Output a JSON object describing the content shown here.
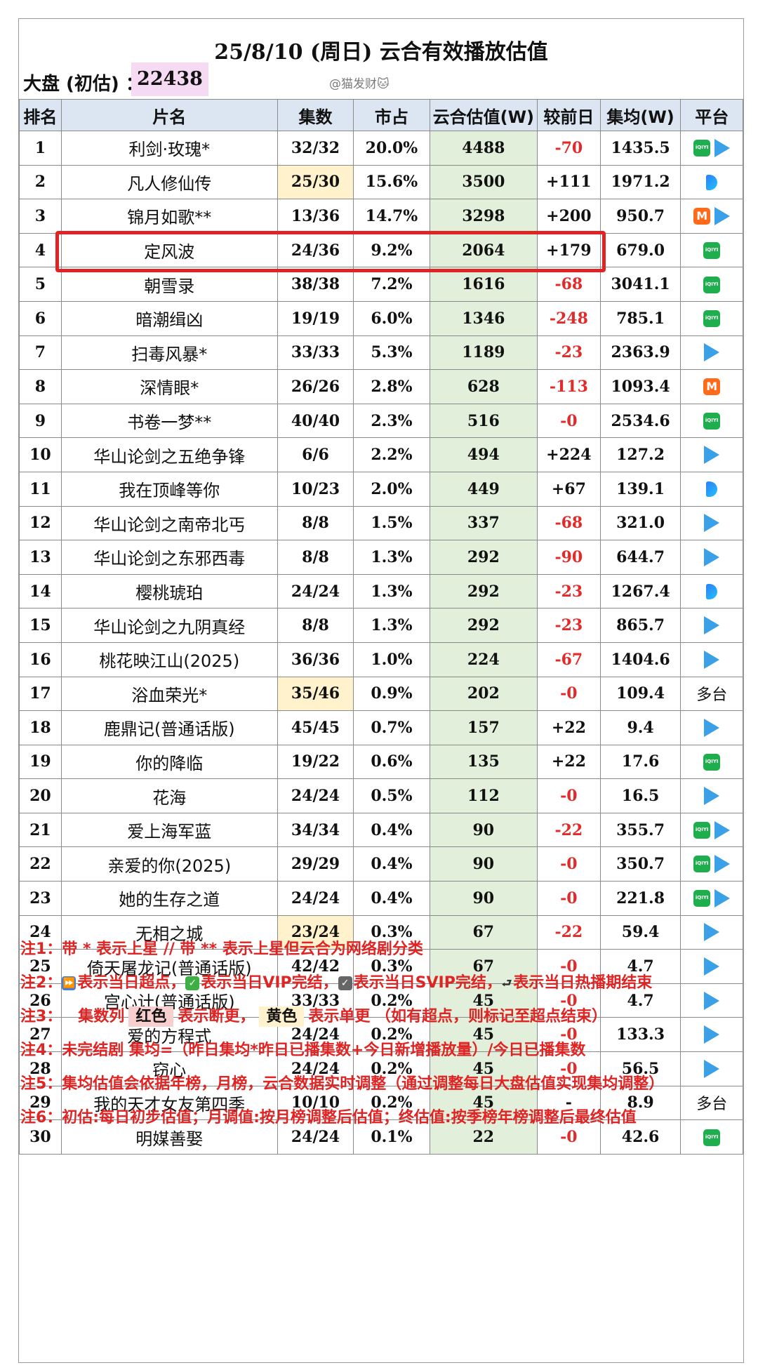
{
  "title": "25/8/10 (周日) 云合有效播放估值",
  "pan": {
    "label": "大盘 (初估) ：",
    "value": "22438"
  },
  "watermark": "@猫发财🐱",
  "headers": [
    "排名",
    "片名",
    "集数",
    "市占",
    "云合估值(W)",
    "较前日",
    "集均(W)",
    "平台"
  ],
  "rows": [
    {
      "rank": "1",
      "name": "利剑·玫瑰*",
      "episodes": "32/32",
      "share": "20.0%",
      "estimate": "4488",
      "change": "-70",
      "avg": "1435.5",
      "platforms": [
        "iqiyi",
        "tencent"
      ],
      "platform_text": "",
      "ep_color": ""
    },
    {
      "rank": "2",
      "name": "凡人修仙传",
      "episodes": "25/30",
      "share": "15.6%",
      "estimate": "3500",
      "change": "+111",
      "avg": "1971.2",
      "platforms": [
        "youku"
      ],
      "platform_text": "",
      "ep_color": "yellow"
    },
    {
      "rank": "3",
      "name": "锦月如歌**",
      "episodes": "13/36",
      "share": "14.7%",
      "estimate": "3298",
      "change": "+200",
      "avg": "950.7",
      "platforms": [
        "mango",
        "tencent"
      ],
      "platform_text": "",
      "ep_color": ""
    },
    {
      "rank": "4",
      "name": "定风波",
      "episodes": "24/36",
      "share": "9.2%",
      "estimate": "2064",
      "change": "+179",
      "avg": "679.0",
      "platforms": [
        "iqiyi"
      ],
      "platform_text": "",
      "ep_color": ""
    },
    {
      "rank": "5",
      "name": "朝雪录",
      "episodes": "38/38",
      "share": "7.2%",
      "estimate": "1616",
      "change": "-68",
      "avg": "3041.1",
      "platforms": [
        "iqiyi"
      ],
      "platform_text": "",
      "ep_color": ""
    },
    {
      "rank": "6",
      "name": "暗潮缉凶",
      "episodes": "19/19",
      "share": "6.0%",
      "estimate": "1346",
      "change": "-248",
      "avg": "785.1",
      "platforms": [
        "iqiyi"
      ],
      "platform_text": "",
      "ep_color": ""
    },
    {
      "rank": "7",
      "name": "扫毒风暴*",
      "episodes": "33/33",
      "share": "5.3%",
      "estimate": "1189",
      "change": "-23",
      "avg": "2363.9",
      "platforms": [
        "tencent"
      ],
      "platform_text": "",
      "ep_color": ""
    },
    {
      "rank": "8",
      "name": "深情眼*",
      "episodes": "26/26",
      "share": "2.8%",
      "estimate": "628",
      "change": "-113",
      "avg": "1093.4",
      "platforms": [
        "mango"
      ],
      "platform_text": "",
      "ep_color": ""
    },
    {
      "rank": "9",
      "name": "书卷一梦**",
      "episodes": "40/40",
      "share": "2.3%",
      "estimate": "516",
      "change": "-0",
      "avg": "2534.6",
      "platforms": [
        "iqiyi"
      ],
      "platform_text": "",
      "ep_color": ""
    },
    {
      "rank": "10",
      "name": "华山论剑之五绝争锋",
      "episodes": "6/6",
      "share": "2.2%",
      "estimate": "494",
      "change": "+224",
      "avg": "127.2",
      "platforms": [
        "tencent"
      ],
      "platform_text": "",
      "ep_color": ""
    },
    {
      "rank": "11",
      "name": "我在顶峰等你",
      "episodes": "10/23",
      "share": "2.0%",
      "estimate": "449",
      "change": "+67",
      "avg": "139.1",
      "platforms": [
        "youku"
      ],
      "platform_text": "",
      "ep_color": ""
    },
    {
      "rank": "12",
      "name": "华山论剑之南帝北丐",
      "episodes": "8/8",
      "share": "1.5%",
      "estimate": "337",
      "change": "-68",
      "avg": "321.0",
      "platforms": [
        "tencent"
      ],
      "platform_text": "",
      "ep_color": ""
    },
    {
      "rank": "13",
      "name": "华山论剑之东邪西毒",
      "episodes": "8/8",
      "share": "1.3%",
      "estimate": "292",
      "change": "-90",
      "avg": "644.7",
      "platforms": [
        "tencent"
      ],
      "platform_text": "",
      "ep_color": ""
    },
    {
      "rank": "14",
      "name": "樱桃琥珀",
      "episodes": "24/24",
      "share": "1.3%",
      "estimate": "292",
      "change": "-23",
      "avg": "1267.4",
      "platforms": [
        "youku"
      ],
      "platform_text": "",
      "ep_color": ""
    },
    {
      "rank": "15",
      "name": "华山论剑之九阴真经",
      "episodes": "8/8",
      "share": "1.3%",
      "estimate": "292",
      "change": "-23",
      "avg": "865.7",
      "platforms": [
        "tencent"
      ],
      "platform_text": "",
      "ep_color": ""
    },
    {
      "rank": "16",
      "name": "桃花映江山(2025)",
      "episodes": "36/36",
      "share": "1.0%",
      "estimate": "224",
      "change": "-67",
      "avg": "1404.6",
      "platforms": [
        "tencent"
      ],
      "platform_text": "",
      "ep_color": ""
    },
    {
      "rank": "17",
      "name": "浴血荣光*",
      "episodes": "35/46",
      "share": "0.9%",
      "estimate": "202",
      "change": "-0",
      "avg": "109.4",
      "platforms": [],
      "platform_text": "多台",
      "ep_color": "yellow"
    },
    {
      "rank": "18",
      "name": "鹿鼎记(普通话版)",
      "episodes": "45/45",
      "share": "0.7%",
      "estimate": "157",
      "change": "+22",
      "avg": "9.4",
      "platforms": [
        "tencent"
      ],
      "platform_text": "",
      "ep_color": ""
    },
    {
      "rank": "19",
      "name": "你的降临",
      "episodes": "19/22",
      "share": "0.6%",
      "estimate": "135",
      "change": "+22",
      "avg": "17.6",
      "platforms": [
        "iqiyi"
      ],
      "platform_text": "",
      "ep_color": ""
    },
    {
      "rank": "20",
      "name": "花海",
      "episodes": "24/24",
      "share": "0.5%",
      "estimate": "112",
      "change": "-0",
      "avg": "16.5",
      "platforms": [
        "tencent"
      ],
      "platform_text": "",
      "ep_color": ""
    },
    {
      "rank": "21",
      "name": "爱上海军蓝",
      "episodes": "34/34",
      "share": "0.4%",
      "estimate": "90",
      "change": "-22",
      "avg": "355.7",
      "platforms": [
        "iqiyi",
        "tencent"
      ],
      "platform_text": "",
      "ep_color": ""
    },
    {
      "rank": "22",
      "name": "亲爱的你(2025)",
      "episodes": "29/29",
      "share": "0.4%",
      "estimate": "90",
      "change": "-0",
      "avg": "350.7",
      "platforms": [
        "iqiyi",
        "tencent"
      ],
      "platform_text": "",
      "ep_color": ""
    },
    {
      "rank": "23",
      "name": "她的生存之道",
      "episodes": "24/24",
      "share": "0.4%",
      "estimate": "90",
      "change": "-0",
      "avg": "221.8",
      "platforms": [
        "iqiyi",
        "tencent"
      ],
      "platform_text": "",
      "ep_color": ""
    },
    {
      "rank": "24",
      "name": "无相之城",
      "episodes": "23/24",
      "share": "0.3%",
      "estimate": "67",
      "change": "-22",
      "avg": "59.4",
      "platforms": [
        "tencent"
      ],
      "platform_text": "",
      "ep_color": "yellow"
    },
    {
      "rank": "25",
      "name": "倚天屠龙记(普通话版)",
      "episodes": "42/42",
      "share": "0.3%",
      "estimate": "67",
      "change": "-0",
      "avg": "4.7",
      "platforms": [
        "tencent"
      ],
      "platform_text": "",
      "ep_color": ""
    },
    {
      "rank": "26",
      "name": "宫心计(普通话版)",
      "episodes": "33/33",
      "share": "0.2%",
      "estimate": "45",
      "change": "-0",
      "avg": "4.7",
      "platforms": [
        "tencent"
      ],
      "platform_text": "",
      "ep_color": ""
    },
    {
      "rank": "27",
      "name": "爱的方程式",
      "episodes": "24/24",
      "share": "0.2%",
      "estimate": "45",
      "change": "-0",
      "avg": "133.3",
      "platforms": [
        "tencent"
      ],
      "platform_text": "",
      "ep_color": ""
    },
    {
      "rank": "28",
      "name": "窃心",
      "episodes": "24/24",
      "share": "0.2%",
      "estimate": "45",
      "change": "-0",
      "avg": "56.5",
      "platforms": [
        "tencent"
      ],
      "platform_text": "",
      "ep_color": ""
    },
    {
      "rank": "29",
      "name": "我的天才女友第四季",
      "episodes": "10/10",
      "share": "0.2%",
      "estimate": "45",
      "change": "-",
      "avg": "8.9",
      "platforms": [],
      "platform_text": "多台",
      "ep_color": ""
    },
    {
      "rank": "30",
      "name": "明媒善娶",
      "episodes": "24/24",
      "share": "0.1%",
      "estimate": "22",
      "change": "-0",
      "avg": "42.6",
      "platforms": [
        "iqiyi"
      ],
      "platform_text": "",
      "ep_color": ""
    }
  ],
  "notes": {
    "n1": "注1：带 * 表示上星 // 带 ** 表示上星但云合为网络剧分类",
    "n2_prefix": "注2：",
    "n2_a": "表示当日超点，",
    "n2_b": "表示当日VIP完结，",
    "n2_c": "表示当日SVIP完结，",
    "n2_d": "表示当日热播期结束",
    "n2_end_glyph": "⮐",
    "n3_prefix": "注3：",
    "n3_a": "集数列",
    "n3_red": "红色",
    "n3_b": "表示断更，",
    "n3_yellow": "黄色",
    "n3_c": "表示单更 （如有超点，则标记至超点结束）",
    "n4": "注4：未完结剧 集均=（昨日集均*昨日已播集数+今日新增播放量）/今日已播集数",
    "n5": "注5：集均估值会依据年榜，月榜，云合数据实时调整（通过调整每日大盘估值实现集均调整）",
    "n6": "注6：初估:每日初步估值；月调值:按月榜调整后估值；终估值:按季榜年榜调整后最终估值"
  },
  "colors": {
    "header_bg": "#dce6f2",
    "estimate_bg": "#e2efda",
    "single_update_yellow": "#fff2cc",
    "decline_red": "#e32a2a",
    "highlight_border": "#e02424",
    "pan_bg": "#f6d9f2"
  },
  "highlighted_rank": "5"
}
